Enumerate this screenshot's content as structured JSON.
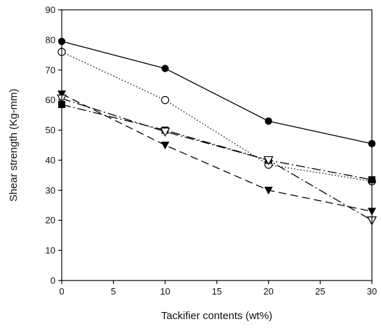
{
  "chart_data": {
    "type": "line",
    "title": "",
    "xlabel": "Tackifier contents (wt%)",
    "ylabel": "Shear strength (Kg-mm)",
    "xlim": [
      0,
      30
    ],
    "ylim": [
      0,
      90
    ],
    "xticks": [
      0,
      5,
      10,
      15,
      20,
      25,
      30
    ],
    "yticks": [
      0,
      10,
      20,
      30,
      40,
      50,
      60,
      70,
      80,
      90
    ],
    "grid": false,
    "legend": "none",
    "series": [
      {
        "x": [
          0,
          10,
          20,
          30
        ],
        "values": [
          79.5,
          70.5,
          53,
          45.5
        ],
        "marker": "filled-circle",
        "line_style": "solid",
        "color": "#000000"
      },
      {
        "x": [
          0,
          10,
          20,
          30
        ],
        "values": [
          76,
          60,
          38.5,
          33
        ],
        "marker": "open-circle",
        "line_style": "dotted",
        "color": "#000000"
      },
      {
        "x": [
          0,
          10,
          20,
          30
        ],
        "values": [
          58.5,
          50,
          40,
          33.5
        ],
        "marker": "filled-square",
        "line_style": "dash-dot",
        "color": "#000000"
      },
      {
        "x": [
          0,
          10,
          20,
          30
        ],
        "values": [
          62,
          45,
          30,
          23
        ],
        "marker": "filled-triangle-down",
        "line_style": "long-dash",
        "color": "#000000"
      },
      {
        "x": [
          0,
          10,
          20,
          30
        ],
        "values": [
          60.5,
          49.5,
          40,
          20
        ],
        "marker": "open-triangle-down",
        "line_style": "dash-dot",
        "color": "#000000"
      }
    ]
  }
}
